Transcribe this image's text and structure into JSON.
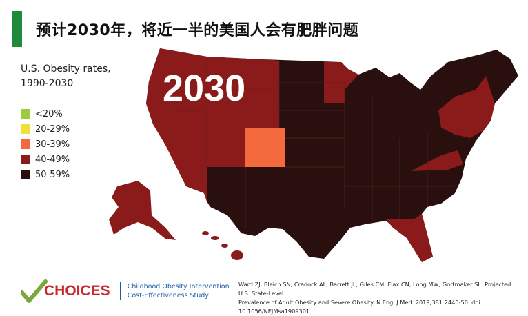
{
  "title": "预计2030年，将近一半的美国人会有肥胖问题",
  "legend": {
    "title_line1": "U.S. Obesity rates,",
    "title_line2": "1990-2030",
    "items": [
      {
        "label": "<20%",
        "color": "#9ccc3c"
      },
      {
        "label": "20-29%",
        "color": "#f3df3a"
      },
      {
        "label": "30-39%",
        "color": "#f26a3d"
      },
      {
        "label": "40-49%",
        "color": "#8b1a1a"
      },
      {
        "label": "50-59%",
        "color": "#2a0f0f"
      }
    ]
  },
  "map": {
    "year": "2030",
    "colors": {
      "rate_30_39": "#f26a3d",
      "rate_40_49": "#8b1a1a",
      "rate_50_59": "#2a0f0f",
      "border": "#5a2020"
    }
  },
  "footer": {
    "logo_text": "CHOICES",
    "logo_sub_line1": "Childhood Obesity Intervention",
    "logo_sub_line2": "Cost-Effectiveness Study",
    "citation_line1": "Ward ZJ, Bleich SN, Cradock AL, Barrett JL, Giles CM, Flax CN, Long MW, Gortmaker SL. Projected U.S. State-Level",
    "citation_line2": "Prevalence of Adult Obesity and Severe Obesity. N Engl J Med. 2019;381:2440-50. doi: 10.1056/NEJMsa1909301"
  }
}
